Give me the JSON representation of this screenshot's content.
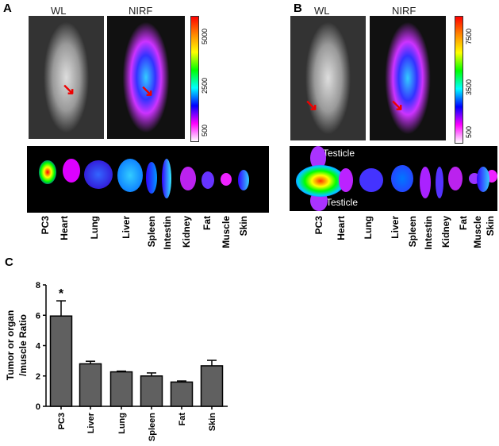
{
  "panelA": {
    "label": "A",
    "wl": "WL",
    "nirf": "NIRF",
    "scale": [
      "5000",
      "2500",
      "500"
    ],
    "organs": [
      "PC3",
      "Heart",
      "Lung",
      "Liver",
      "Spleen",
      "Intestin",
      "Kidney",
      "Fat",
      "Muscle",
      "Skin"
    ]
  },
  "panelB": {
    "label": "B",
    "wl": "WL",
    "nirf": "NIRF",
    "scale": [
      "7500",
      "3500",
      "500"
    ],
    "testicle_top": "Testicle",
    "testicle_bottom": "Testicle",
    "organs": [
      "PC3",
      "Heart",
      "Lung",
      "Liver",
      "Spleen",
      "Intestin",
      "Kidney",
      "Fat",
      "Muscle",
      "Skin"
    ]
  },
  "panelC": {
    "label": "C"
  },
  "chart_data": {
    "type": "bar",
    "title": "",
    "xlabel": "",
    "ylabel": "Tumor or organ /muscle Ratio",
    "ylabel_lines": [
      "Tumor or organ",
      "/muscle Ratio"
    ],
    "categories": [
      "PC3",
      "Liver",
      "Lung",
      "Spleen",
      "Fat",
      "Skin"
    ],
    "values": [
      5.95,
      2.8,
      2.27,
      2.0,
      1.6,
      2.67
    ],
    "error_upper": [
      6.95,
      2.97,
      2.32,
      2.2,
      1.67,
      3.03
    ],
    "annotations": [
      {
        "category": "PC3",
        "text": "*"
      }
    ],
    "ylim": [
      0,
      8
    ],
    "yticks": [
      "0",
      "2",
      "4",
      "6",
      "8"
    ],
    "bar_color": "#606060",
    "grid": false
  }
}
